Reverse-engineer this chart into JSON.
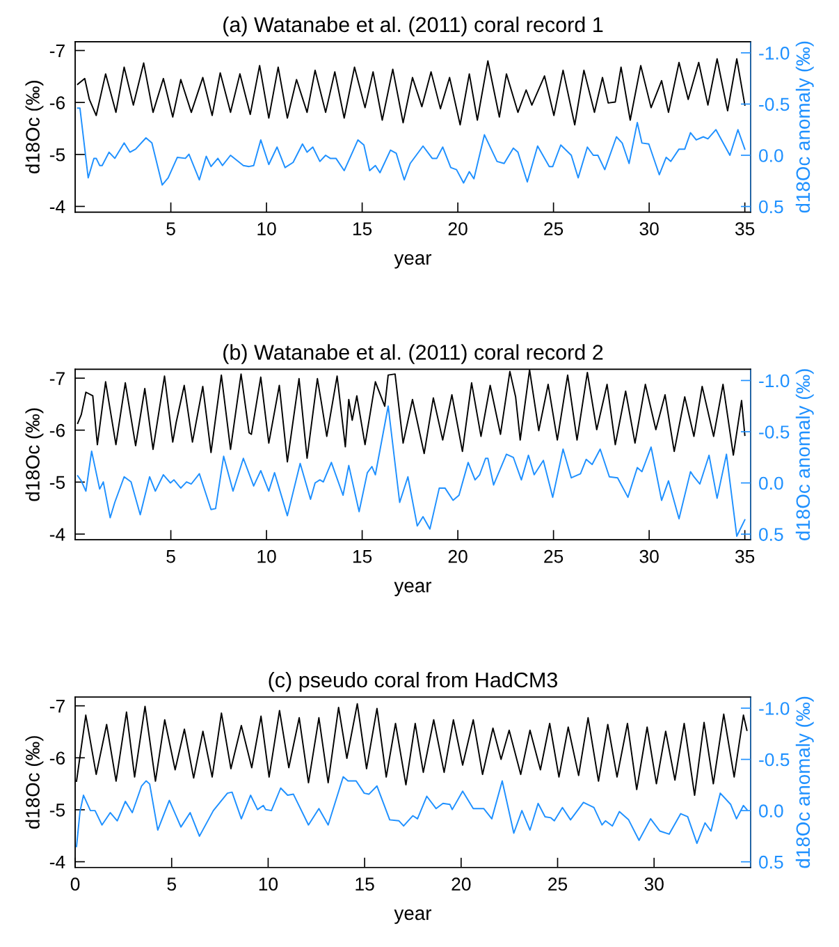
{
  "chart_data": [
    {
      "type": "line",
      "title": "(a) Watanabe et al. (2011) coral record 1",
      "xlabel": "year",
      "ylabel": "d18Oc (‰)",
      "y2label": "d18Oc anomaly (‰)",
      "grid": false,
      "line_style": "solid",
      "xlim": [
        0,
        35.3
      ],
      "xticks": [
        5,
        10,
        15,
        20,
        25,
        30,
        35
      ],
      "ylim": [
        -3.89,
        -7.17
      ],
      "yticks": [
        -7,
        -6,
        -5,
        -4
      ],
      "y2lim": [
        0.555,
        -1.109
      ],
      "y2ticks": [
        {
          "value": -1.0,
          "label": "-1.0"
        },
        {
          "value": -0.5,
          "label": "-0.5"
        },
        {
          "value": 0.0,
          "label": "0.0"
        },
        {
          "value": 0.5,
          "label": "0.5"
        }
      ],
      "series": [
        {
          "color": "#000000",
          "x": [
            0.13,
            0.5,
            0.74,
            1.1,
            1.59,
            2.13,
            2.56,
            3.04,
            3.58,
            4.07,
            4.61,
            5.1,
            5.52,
            6.07,
            6.67,
            7.16,
            7.58,
            8.12,
            8.61,
            9.15,
            9.64,
            10.12,
            10.61,
            11.09,
            11.57,
            12.12,
            12.54,
            13.09,
            13.57,
            14.06,
            14.6,
            15.15,
            15.57,
            16.05,
            16.6,
            17.14,
            17.63,
            18.12,
            18.6,
            19.09,
            19.57,
            20.12,
            20.6,
            21.02,
            21.57,
            22.17,
            22.54,
            23.14,
            23.57,
            23.87,
            24.53,
            25.02,
            25.5,
            26.11,
            26.59,
            27.14,
            27.56,
            27.86,
            28.23,
            28.53,
            29.01,
            29.56,
            30.1,
            30.65,
            31.01,
            31.56,
            32.04,
            32.59,
            33.07,
            33.55,
            34.1,
            34.58,
            35.0
          ],
          "values": [
            -6.35,
            -6.46,
            -6.06,
            -5.75,
            -6.55,
            -5.81,
            -6.68,
            -5.95,
            -6.76,
            -5.81,
            -6.46,
            -5.72,
            -6.44,
            -5.81,
            -6.48,
            -5.75,
            -6.57,
            -5.81,
            -6.55,
            -5.77,
            -6.71,
            -5.7,
            -6.68,
            -5.7,
            -6.44,
            -5.81,
            -6.62,
            -5.81,
            -6.59,
            -5.7,
            -6.68,
            -5.9,
            -6.59,
            -5.66,
            -6.64,
            -5.61,
            -6.48,
            -5.92,
            -6.59,
            -5.88,
            -6.48,
            -5.57,
            -6.55,
            -5.66,
            -6.8,
            -5.72,
            -6.55,
            -5.81,
            -6.24,
            -5.95,
            -6.51,
            -5.75,
            -6.62,
            -5.57,
            -6.62,
            -5.81,
            -6.48,
            -5.99,
            -6.01,
            -6.68,
            -5.66,
            -6.71,
            -5.9,
            -6.42,
            -5.81,
            -6.77,
            -6.06,
            -6.77,
            -5.95,
            -6.84,
            -5.84,
            -6.84,
            -5.95
          ]
        },
        {
          "color": "#1e90ff",
          "axis": "y2",
          "x": [
            0.13,
            0.25,
            0.68,
            0.98,
            1.1,
            1.28,
            1.41,
            1.77,
            2.07,
            2.56,
            2.86,
            3.16,
            3.7,
            4.01,
            4.55,
            4.86,
            5.34,
            5.76,
            5.95,
            6.49,
            6.85,
            7.1,
            7.46,
            7.7,
            8.12,
            8.79,
            9.09,
            9.33,
            9.7,
            10.12,
            10.55,
            10.97,
            11.39,
            11.88,
            12.12,
            12.42,
            12.79,
            13.09,
            13.33,
            13.63,
            14.06,
            14.78,
            15.09,
            15.39,
            15.69,
            15.93,
            16.48,
            16.78,
            17.2,
            17.51,
            18.18,
            18.66,
            18.9,
            19.21,
            19.63,
            19.93,
            20.3,
            20.6,
            20.84,
            21.39,
            22.05,
            22.42,
            22.9,
            23.14,
            23.63,
            24.17,
            24.78,
            24.96,
            25.38,
            25.93,
            26.29,
            26.77,
            27.08,
            27.32,
            27.68,
            28.29,
            28.59,
            28.95,
            29.38,
            29.62,
            29.98,
            30.53,
            30.89,
            31.13,
            31.56,
            31.86,
            32.16,
            32.46,
            32.83,
            33.07,
            33.49,
            34.22,
            34.64,
            35.0
          ],
          "values": [
            -0.46,
            -0.46,
            0.22,
            0.03,
            0.03,
            0.1,
            0.1,
            -0.03,
            0.03,
            -0.12,
            -0.03,
            -0.06,
            -0.17,
            -0.12,
            0.29,
            0.22,
            0.02,
            0.03,
            -0.01,
            0.24,
            0.01,
            0.11,
            0.03,
            0.1,
            0.0,
            0.1,
            0.11,
            0.1,
            -0.15,
            0.09,
            -0.08,
            0.12,
            0.07,
            -0.11,
            -0.03,
            -0.08,
            0.06,
            0.0,
            0.03,
            0.03,
            0.15,
            -0.15,
            -0.1,
            0.15,
            0.1,
            0.17,
            -0.05,
            -0.02,
            0.24,
            0.08,
            -0.09,
            0.03,
            0.03,
            -0.08,
            0.12,
            0.14,
            0.27,
            0.16,
            0.23,
            -0.2,
            0.06,
            0.08,
            -0.07,
            -0.03,
            0.26,
            -0.09,
            0.11,
            0.11,
            -0.1,
            0.0,
            0.22,
            -0.08,
            0.0,
            0.0,
            0.14,
            -0.18,
            -0.12,
            0.08,
            -0.32,
            -0.12,
            -0.11,
            0.19,
            0.02,
            0.06,
            -0.06,
            -0.06,
            -0.22,
            -0.15,
            -0.18,
            -0.16,
            -0.25,
            0.0,
            -0.25,
            -0.06
          ]
        }
      ]
    },
    {
      "type": "line",
      "title": "(b) Watanabe et al. (2011) coral record 2",
      "xlabel": "year",
      "ylabel": "d18Oc (‰)",
      "y2label": "d18Oc anomaly (‰)",
      "grid": false,
      "line_style": "solid",
      "xlim": [
        0,
        35.3
      ],
      "xticks": [
        5,
        10,
        15,
        20,
        25,
        30,
        35
      ],
      "ylim": [
        -3.89,
        -7.17
      ],
      "yticks": [
        -7,
        -6,
        -5,
        -4
      ],
      "y2lim": [
        0.555,
        -1.109
      ],
      "y2ticks": [
        {
          "value": -1.0,
          "label": "-1.0"
        },
        {
          "value": -0.5,
          "label": "-0.5"
        },
        {
          "value": 0.0,
          "label": "0.0"
        },
        {
          "value": 0.5,
          "label": "0.5"
        }
      ],
      "series": [
        {
          "color": "#000000",
          "x": [
            0.13,
            0.32,
            0.56,
            0.92,
            1.16,
            1.59,
            2.13,
            2.62,
            3.16,
            3.64,
            4.07,
            4.67,
            5.1,
            5.28,
            5.7,
            6.13,
            6.67,
            7.1,
            7.64,
            8.12,
            8.67,
            9.09,
            9.21,
            9.7,
            10.12,
            10.67,
            11.09,
            11.7,
            12.12,
            12.66,
            12.85,
            13.15,
            13.69,
            14.12,
            14.3,
            14.48,
            14.72,
            15.15,
            15.69,
            16.18,
            16.36,
            16.72,
            17.14,
            17.63,
            18.24,
            18.72,
            19.21,
            19.69,
            20.24,
            20.72,
            21.21,
            21.69,
            22.23,
            22.72,
            23.02,
            23.26,
            23.75,
            24.23,
            24.72,
            25.2,
            25.74,
            26.23,
            26.77,
            27.26,
            27.8,
            28.23,
            28.77,
            29.26,
            29.8,
            30.35,
            30.83,
            31.31,
            31.86,
            32.34,
            32.77,
            33.37,
            33.86,
            34.4,
            34.83,
            35.0
          ],
          "values": [
            -6.13,
            -6.3,
            -6.73,
            -6.66,
            -5.72,
            -6.93,
            -5.72,
            -6.91,
            -5.7,
            -6.8,
            -5.63,
            -7.04,
            -5.77,
            -6.15,
            -6.86,
            -5.77,
            -6.84,
            -5.57,
            -7.06,
            -5.63,
            -7.08,
            -5.95,
            -5.92,
            -7.02,
            -5.75,
            -6.86,
            -5.39,
            -6.99,
            -5.46,
            -6.99,
            -6.57,
            -5.88,
            -7.04,
            -5.68,
            -6.59,
            -6.19,
            -6.66,
            -5.72,
            -6.93,
            -6.46,
            -7.06,
            -7.08,
            -5.75,
            -6.59,
            -5.55,
            -6.62,
            -5.81,
            -6.68,
            -5.59,
            -6.91,
            -5.88,
            -6.86,
            -5.92,
            -7.13,
            -6.64,
            -5.81,
            -7.16,
            -5.99,
            -6.88,
            -5.81,
            -7.06,
            -5.81,
            -7.11,
            -6.01,
            -6.88,
            -5.72,
            -6.75,
            -5.75,
            -6.88,
            -6.01,
            -6.68,
            -5.59,
            -6.64,
            -5.88,
            -6.84,
            -5.88,
            -6.88,
            -5.52,
            -6.57,
            -5.9
          ]
        },
        {
          "color": "#1e90ff",
          "axis": "y2",
          "x": [
            0.13,
            0.32,
            0.56,
            0.86,
            1.28,
            1.47,
            1.83,
            2.07,
            2.56,
            2.92,
            3.4,
            3.89,
            4.19,
            4.61,
            4.98,
            5.16,
            5.52,
            5.82,
            6.07,
            6.49,
            7.1,
            7.34,
            7.76,
            8.25,
            8.79,
            9.33,
            9.7,
            10.12,
            10.42,
            11.09,
            11.76,
            12.3,
            12.54,
            12.79,
            12.97,
            13.39,
            14.0,
            14.3,
            14.84,
            15.27,
            15.51,
            15.69,
            16.36,
            16.96,
            17.39,
            17.88,
            18.18,
            18.54,
            19.03,
            19.33,
            19.75,
            20.06,
            20.54,
            20.9,
            21.14,
            21.45,
            21.57,
            21.87,
            22.54,
            22.9,
            23.32,
            23.69,
            23.99,
            24.47,
            24.96,
            25.5,
            25.93,
            26.41,
            26.71,
            27.02,
            27.44,
            27.92,
            28.35,
            28.89,
            29.38,
            29.62,
            30.1,
            30.65,
            31.01,
            31.56,
            32.16,
            32.34,
            32.65,
            33.13,
            33.55,
            34.04,
            34.58,
            35.0
          ],
          "values": [
            -0.07,
            -0.02,
            0.08,
            -0.31,
            0.06,
            -0.01,
            0.34,
            0.19,
            -0.06,
            -0.01,
            0.31,
            -0.06,
            0.08,
            -0.08,
            0.0,
            -0.03,
            0.05,
            -0.01,
            0.01,
            -0.09,
            0.26,
            0.25,
            -0.26,
            0.08,
            -0.24,
            0.03,
            -0.12,
            0.08,
            -0.1,
            0.32,
            -0.19,
            0.16,
            0.0,
            -0.03,
            -0.01,
            -0.2,
            0.12,
            -0.17,
            0.28,
            -0.1,
            -0.16,
            -0.08,
            -0.75,
            0.19,
            -0.06,
            0.42,
            0.33,
            0.45,
            0.05,
            0.05,
            0.17,
            0.12,
            -0.2,
            -0.03,
            -0.08,
            -0.24,
            -0.24,
            0.02,
            -0.28,
            -0.25,
            -0.03,
            -0.27,
            -0.08,
            -0.22,
            0.14,
            -0.33,
            -0.05,
            -0.09,
            -0.23,
            -0.18,
            -0.33,
            -0.06,
            -0.05,
            0.14,
            -0.15,
            -0.11,
            -0.35,
            0.17,
            -0.02,
            0.35,
            -0.11,
            -0.06,
            0.01,
            -0.27,
            0.15,
            -0.28,
            0.52,
            0.36
          ]
        }
      ]
    },
    {
      "type": "line",
      "title": "(c) pseudo coral from HadCM3",
      "xlabel": "year",
      "ylabel": "d18Oc (‰)",
      "y2label": "d18Oc anomaly (‰)",
      "grid": false,
      "line_style": "solid",
      "xlim": [
        0,
        35
      ],
      "xticks": [
        0,
        5,
        10,
        15,
        20,
        25,
        30
      ],
      "ylim": [
        -3.89,
        -7.17
      ],
      "yticks": [
        -7,
        -6,
        -5,
        -4
      ],
      "y2lim": [
        0.555,
        -1.109
      ],
      "y2ticks": [
        {
          "value": -1.0,
          "label": "-1.0"
        },
        {
          "value": -0.5,
          "label": "-0.5"
        },
        {
          "value": 0.0,
          "label": "0.0"
        },
        {
          "value": 0.5,
          "label": "0.5"
        }
      ],
      "series": [
        {
          "color": "#000000",
          "x": [
            0.07,
            0.55,
            1.09,
            1.63,
            2.12,
            2.66,
            3.08,
            3.62,
            4.16,
            4.64,
            5.18,
            5.66,
            6.14,
            6.62,
            7.1,
            7.58,
            8.07,
            8.61,
            9.15,
            9.63,
            10.05,
            10.59,
            11.07,
            11.61,
            12.09,
            12.63,
            13.11,
            13.65,
            14.08,
            14.62,
            15.1,
            15.64,
            16.12,
            16.6,
            17.14,
            17.62,
            18.04,
            18.58,
            19.12,
            19.6,
            20.08,
            20.63,
            21.11,
            21.65,
            22.07,
            22.49,
            23.09,
            23.57,
            24.11,
            24.59,
            25.07,
            25.55,
            26.09,
            26.58,
            27.12,
            27.6,
            28.08,
            28.62,
            29.1,
            29.64,
            30.12,
            30.6,
            31.08,
            31.56,
            32.1,
            32.59,
            33.07,
            33.61,
            34.15,
            34.63,
            34.81
          ],
          "values": [
            -5.55,
            -6.82,
            -5.68,
            -6.64,
            -5.55,
            -6.88,
            -5.63,
            -6.99,
            -5.55,
            -6.73,
            -5.77,
            -6.55,
            -5.61,
            -6.51,
            -5.63,
            -6.86,
            -5.79,
            -6.62,
            -5.81,
            -6.8,
            -5.63,
            -6.91,
            -5.81,
            -6.77,
            -5.52,
            -6.77,
            -5.52,
            -6.97,
            -5.99,
            -7.04,
            -5.79,
            -6.95,
            -5.63,
            -6.66,
            -5.48,
            -6.66,
            -5.72,
            -6.73,
            -5.72,
            -6.73,
            -5.86,
            -6.73,
            -5.68,
            -6.57,
            -5.97,
            -6.53,
            -5.68,
            -6.53,
            -5.77,
            -6.66,
            -5.63,
            -6.59,
            -5.66,
            -6.77,
            -5.55,
            -6.64,
            -5.63,
            -6.66,
            -5.39,
            -6.59,
            -5.5,
            -6.51,
            -5.57,
            -6.66,
            -5.28,
            -6.68,
            -5.5,
            -6.84,
            -5.63,
            -6.82,
            -6.53
          ]
        },
        {
          "color": "#1e90ff",
          "axis": "y2",
          "x": [
            0.07,
            0.25,
            0.43,
            0.79,
            1.03,
            1.39,
            1.82,
            2.18,
            2.6,
            2.96,
            3.44,
            3.68,
            3.86,
            4.28,
            4.88,
            5.48,
            5.96,
            6.44,
            7.16,
            7.89,
            8.13,
            8.61,
            9.09,
            9.45,
            9.75,
            9.87,
            10.17,
            10.65,
            11.01,
            11.31,
            12.09,
            12.63,
            13.11,
            13.89,
            14.14,
            14.56,
            14.98,
            15.22,
            15.64,
            16.3,
            16.78,
            17.02,
            17.5,
            17.74,
            18.22,
            18.7,
            19.06,
            19.42,
            19.54,
            20.08,
            20.63,
            21.17,
            21.59,
            22.13,
            22.73,
            23.15,
            23.57,
            23.99,
            24.35,
            24.65,
            24.83,
            25.25,
            25.67,
            26.34,
            26.88,
            27.3,
            27.48,
            27.84,
            28.2,
            28.68,
            29.22,
            29.82,
            30.3,
            30.78,
            31.38,
            31.74,
            32.22,
            32.64,
            32.95,
            33.43,
            33.97,
            34.27,
            34.63,
            34.81
          ],
          "values": [
            0.35,
            0.01,
            -0.15,
            0.0,
            0.0,
            0.14,
            0.02,
            0.1,
            -0.09,
            0.02,
            -0.24,
            -0.29,
            -0.26,
            0.19,
            -0.1,
            0.16,
            0.02,
            0.25,
            0.0,
            -0.17,
            -0.18,
            0.08,
            -0.15,
            -0.01,
            -0.05,
            -0.01,
            0.0,
            -0.22,
            -0.15,
            -0.16,
            0.14,
            -0.02,
            0.14,
            -0.33,
            -0.29,
            -0.29,
            -0.17,
            -0.16,
            -0.24,
            0.09,
            0.1,
            0.15,
            0.05,
            0.08,
            -0.14,
            -0.02,
            -0.07,
            -0.06,
            -0.01,
            -0.19,
            -0.02,
            -0.02,
            0.08,
            -0.29,
            0.22,
            0.0,
            0.19,
            -0.07,
            0.06,
            0.07,
            0.1,
            -0.03,
            0.09,
            -0.08,
            -0.03,
            0.14,
            0.1,
            0.15,
            0.01,
            0.09,
            0.29,
            0.08,
            0.2,
            0.23,
            0.03,
            0.06,
            0.32,
            0.12,
            0.2,
            -0.17,
            -0.06,
            0.08,
            -0.05,
            -0.01
          ]
        }
      ]
    }
  ]
}
